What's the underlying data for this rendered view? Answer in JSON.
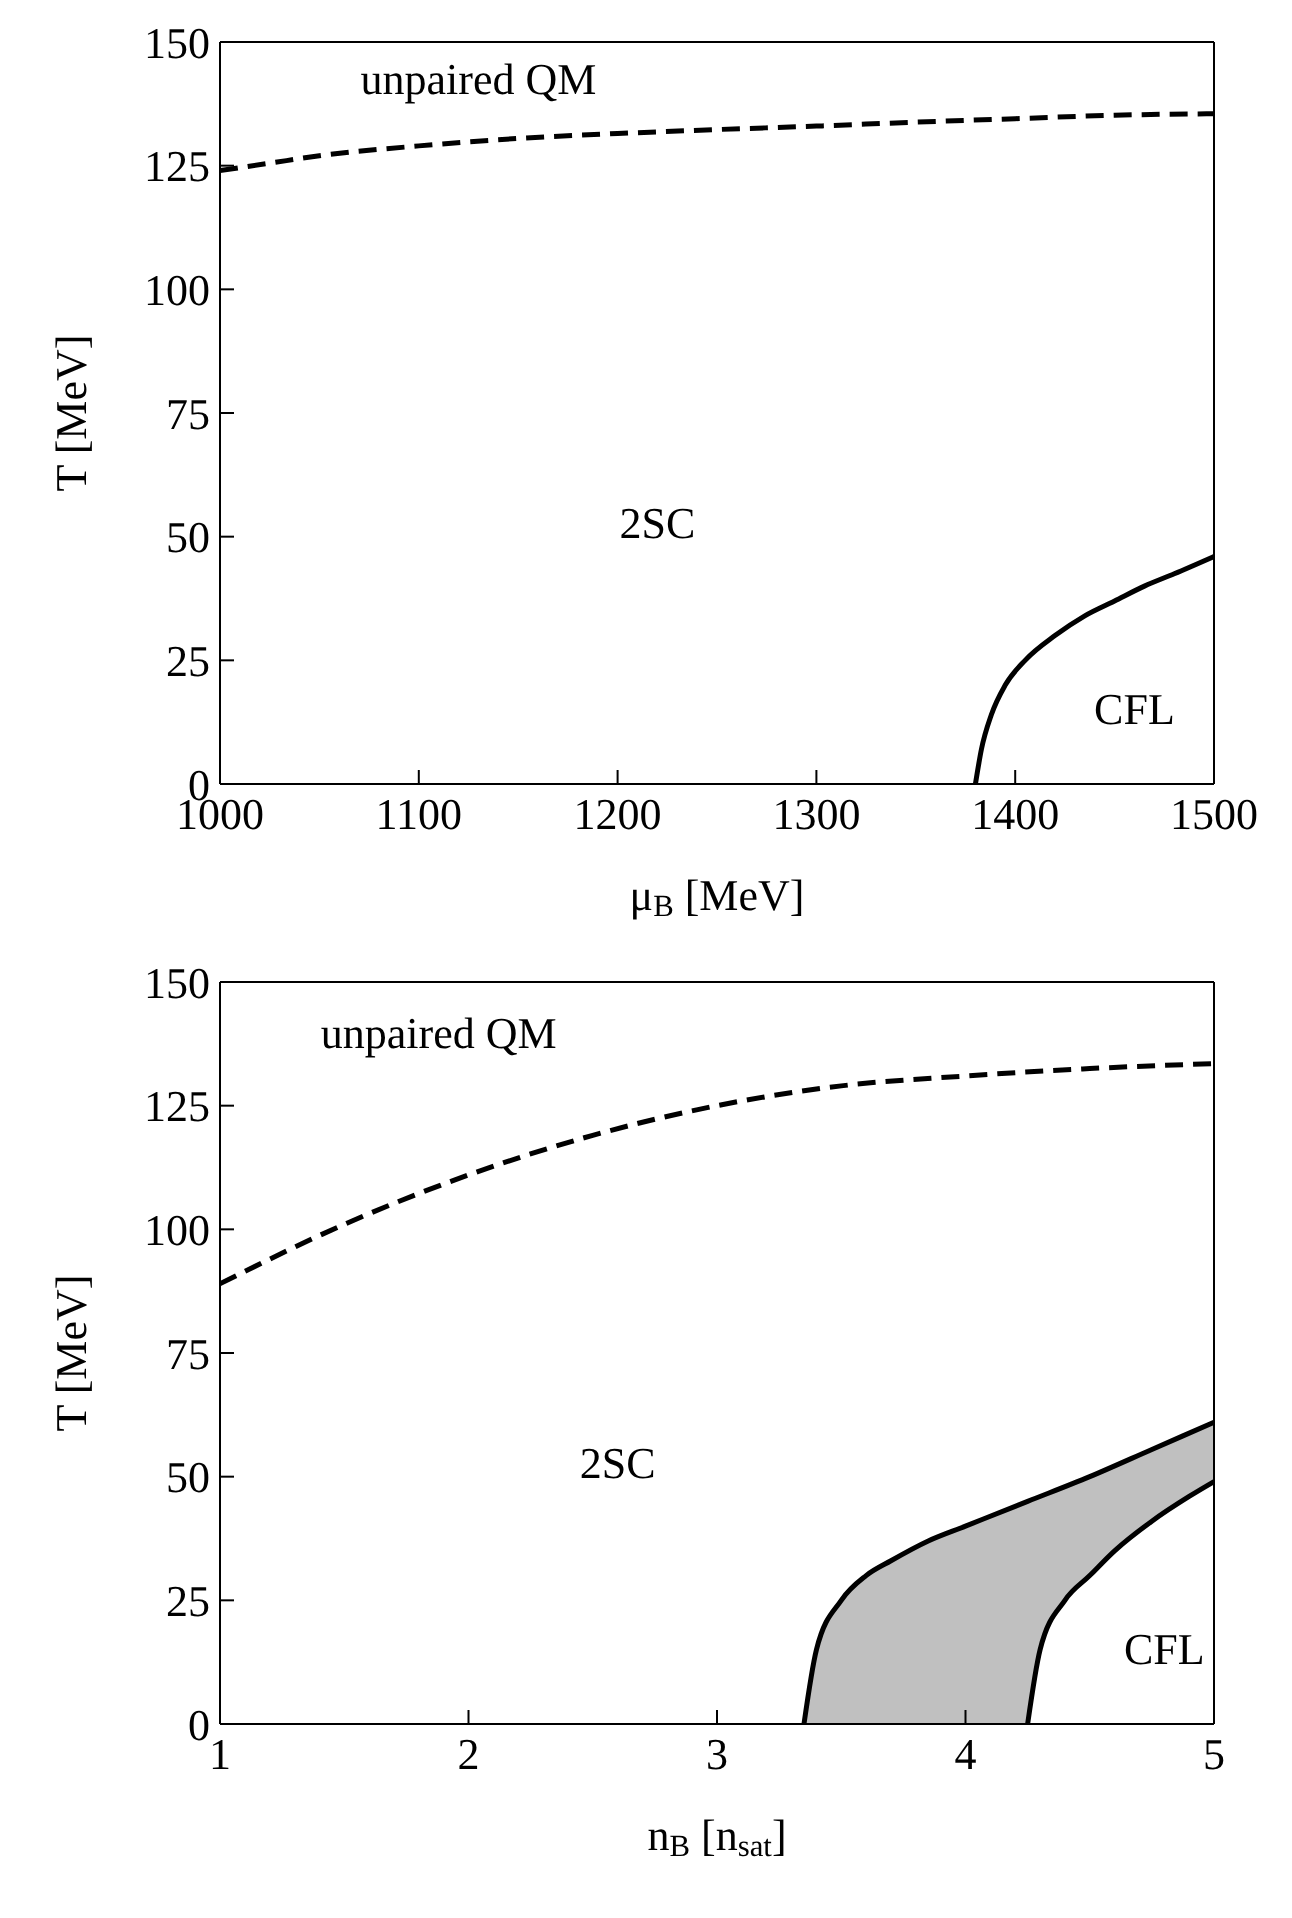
{
  "chart_data": [
    {
      "type": "line",
      "xlabel": "μ$_{B}$ [MeV]",
      "ylabel": "T [MeV]",
      "xlim": [
        1000,
        1500
      ],
      "xticks": [
        1000,
        1100,
        1200,
        1300,
        1400,
        1500
      ],
      "ylim": [
        0,
        150
      ],
      "yticks": [
        0,
        25,
        50,
        75,
        100,
        125,
        150
      ],
      "marker": "none",
      "series": [
        {
          "color": "#000000",
          "line_style": "dashed",
          "x": [
            1000,
            1025,
            1050,
            1100,
            1150,
            1200,
            1250,
            1300,
            1350,
            1400,
            1450,
            1500
          ],
          "values": [
            124,
            125.5,
            127,
            129,
            130.5,
            131.5,
            132.3,
            133,
            133.8,
            134.5,
            135.2,
            135.5
          ]
        },
        {
          "color": "#000000",
          "line_style": "solid",
          "x": [
            1380,
            1383,
            1388,
            1395,
            1405,
            1420,
            1435,
            1450,
            1465,
            1480,
            1500
          ],
          "values": [
            0,
            7,
            14,
            20,
            25,
            30,
            34,
            37,
            40,
            42.5,
            46
          ]
        }
      ],
      "annotations": [
        "unpaired QM",
        "2SC",
        "CFL"
      ]
    },
    {
      "type": "line",
      "xlabel": "n$_{B}$ [n$_{sat}$]",
      "ylabel": "T [MeV]",
      "xlim": [
        1,
        5
      ],
      "xticks": [
        1,
        2,
        3,
        4,
        5
      ],
      "ylim": [
        0,
        150
      ],
      "yticks": [
        0,
        25,
        50,
        75,
        100,
        125,
        150
      ],
      "marker": "none",
      "series": [
        {
          "color": "#000000",
          "line_style": "dashed",
          "x": [
            1,
            1.5,
            2,
            2.5,
            3,
            3.5,
            4,
            4.5,
            5
          ],
          "values": [
            89,
            101,
            111,
            119,
            125,
            129,
            131,
            132.5,
            133.5
          ]
        },
        {
          "type": "area",
          "color": "#c0c0c0",
          "x": [
            3.35,
            3.4,
            3.5,
            3.6,
            3.7,
            3.85,
            4,
            4.25,
            4.5,
            4.75,
            5
          ],
          "values": [
            0,
            15,
            25,
            30,
            33,
            37,
            40,
            45,
            50,
            55.5,
            61
          ]
        },
        {
          "type": "area",
          "color": "#ffffff",
          "x": [
            4.25,
            4.3,
            4.4,
            4.5,
            4.6,
            4.75,
            4.9,
            5
          ],
          "values": [
            0,
            15,
            25,
            30,
            35,
            41,
            46,
            49
          ]
        }
      ],
      "annotations": [
        "unpaired QM",
        "2SC",
        "CFL"
      ]
    }
  ]
}
